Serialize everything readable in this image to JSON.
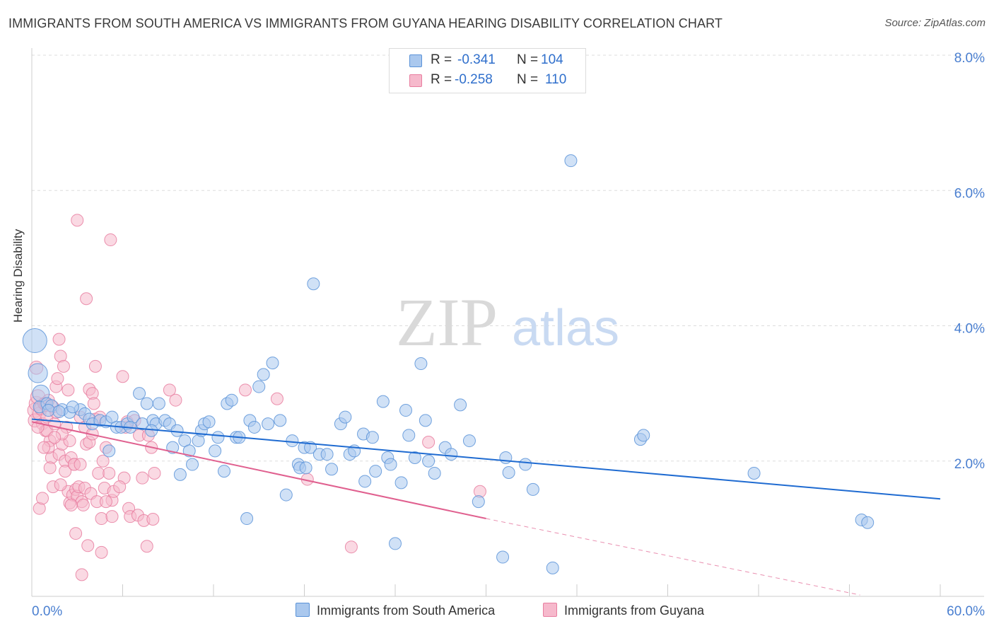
{
  "title": "IMMIGRANTS FROM SOUTH AMERICA VS IMMIGRANTS FROM GUYANA HEARING DISABILITY CORRELATION CHART",
  "source": "Source: ZipAtlas.com",
  "watermark": {
    "zip": "ZIP",
    "atlas": "atlas"
  },
  "colors": {
    "blue_fill": "#aac8ee",
    "blue_stroke": "#5b93d8",
    "blue_line": "#1f6bd1",
    "pink_fill": "#f6b9cc",
    "pink_stroke": "#e87ea0",
    "pink_line": "#e0608f",
    "tick_label": "#4a7fd0",
    "grid": "#dddddd"
  },
  "legend": {
    "rows": [
      {
        "r_label": "R =",
        "r_value": "-0.341",
        "n_label": "N =",
        "n_value": "104",
        "series": "blue"
      },
      {
        "r_label": "R =",
        "r_value": "-0.258",
        "n_label": "N =",
        "n_value": "110",
        "series": "pink"
      }
    ]
  },
  "bottom_legend": [
    {
      "label": "Immigrants from South America",
      "series": "blue"
    },
    {
      "label": "Immigrants from Guyana",
      "series": "pink"
    }
  ],
  "chart_data": {
    "type": "scatter",
    "title": "IMMIGRANTS FROM SOUTH AMERICA VS IMMIGRANTS FROM GUYANA HEARING DISABILITY CORRELATION CHART",
    "xlabel": "",
    "ylabel": "Hearing Disability",
    "xlim": [
      0,
      60
    ],
    "ylim": [
      0,
      8
    ],
    "x_tick_labels": [
      "0.0%",
      "60.0%"
    ],
    "y_ticks": [
      2,
      4,
      6,
      8
    ],
    "y_tick_labels": [
      "2.0%",
      "4.0%",
      "6.0%",
      "8.0%"
    ],
    "grid": "horizontal dashed",
    "legend_position": "top-center",
    "series": [
      {
        "name": "Immigrants from South America",
        "color": "blue",
        "R": -0.341,
        "N": 104,
        "trend": {
          "x": [
            0,
            60
          ],
          "y": [
            2.62,
            1.44
          ]
        },
        "points": [
          [
            0.2,
            3.78,
            20
          ],
          [
            0.4,
            3.3,
            16
          ],
          [
            0.6,
            3.0,
            14
          ],
          [
            0.5,
            2.8,
            10
          ],
          [
            1.0,
            2.85,
            10
          ],
          [
            1.3,
            2.82,
            10
          ],
          [
            1.1,
            2.75,
            10
          ],
          [
            2.0,
            2.76,
            10
          ],
          [
            2.5,
            2.72,
            10
          ],
          [
            3.2,
            2.76,
            10
          ],
          [
            2.7,
            2.8,
            10
          ],
          [
            1.8,
            2.73,
            10
          ],
          [
            3.5,
            2.7,
            10
          ],
          [
            3.8,
            2.62,
            10
          ],
          [
            4.0,
            2.55,
            10
          ],
          [
            4.5,
            2.6,
            10
          ],
          [
            4.9,
            2.58,
            10
          ],
          [
            5.3,
            2.65,
            10
          ],
          [
            5.6,
            2.5,
            10
          ],
          [
            5.1,
            2.15,
            10
          ],
          [
            5.9,
            2.5,
            10
          ],
          [
            6.3,
            2.55,
            10
          ],
          [
            6.7,
            2.65,
            10
          ],
          [
            6.5,
            2.5,
            10
          ],
          [
            7.1,
            3.0,
            10
          ],
          [
            7.3,
            2.55,
            10
          ],
          [
            7.6,
            2.85,
            10
          ],
          [
            8.0,
            2.6,
            10
          ],
          [
            8.2,
            2.55,
            10
          ],
          [
            7.9,
            2.45,
            10
          ],
          [
            8.4,
            2.85,
            10
          ],
          [
            8.8,
            2.6,
            10
          ],
          [
            9.1,
            2.55,
            10
          ],
          [
            9.3,
            2.2,
            10
          ],
          [
            9.6,
            2.45,
            10
          ],
          [
            9.8,
            1.8,
            10
          ],
          [
            10.1,
            2.3,
            10
          ],
          [
            10.4,
            2.15,
            10
          ],
          [
            10.6,
            1.95,
            10
          ],
          [
            11.0,
            2.3,
            10
          ],
          [
            11.2,
            2.45,
            10
          ],
          [
            11.4,
            2.55,
            10
          ],
          [
            11.7,
            2.58,
            10
          ],
          [
            12.1,
            2.15,
            10
          ],
          [
            12.3,
            2.35,
            10
          ],
          [
            12.7,
            1.85,
            10
          ],
          [
            12.9,
            2.85,
            10
          ],
          [
            13.2,
            2.9,
            10
          ],
          [
            13.5,
            2.35,
            10
          ],
          [
            13.7,
            2.35,
            10
          ],
          [
            14.2,
            1.15,
            10
          ],
          [
            14.4,
            2.6,
            10
          ],
          [
            14.7,
            2.5,
            10
          ],
          [
            15.0,
            3.1,
            10
          ],
          [
            15.3,
            3.28,
            10
          ],
          [
            15.6,
            2.55,
            10
          ],
          [
            15.9,
            3.45,
            10
          ],
          [
            16.4,
            2.6,
            10
          ],
          [
            16.8,
            1.5,
            10
          ],
          [
            17.2,
            2.3,
            10
          ],
          [
            17.6,
            1.95,
            10
          ],
          [
            18.0,
            2.2,
            10
          ],
          [
            17.7,
            1.9,
            10
          ],
          [
            18.1,
            1.9,
            10
          ],
          [
            18.4,
            2.2,
            10
          ],
          [
            18.6,
            4.62,
            10
          ],
          [
            19.0,
            2.1,
            10
          ],
          [
            19.5,
            2.1,
            10
          ],
          [
            19.8,
            1.88,
            10
          ],
          [
            20.4,
            2.55,
            10
          ],
          [
            20.7,
            2.65,
            10
          ],
          [
            21.0,
            2.1,
            10
          ],
          [
            21.3,
            2.15,
            10
          ],
          [
            21.9,
            2.4,
            10
          ],
          [
            22.0,
            1.7,
            10
          ],
          [
            22.5,
            2.35,
            10
          ],
          [
            22.7,
            1.85,
            10
          ],
          [
            23.2,
            2.88,
            10
          ],
          [
            23.5,
            2.05,
            10
          ],
          [
            23.7,
            1.95,
            10
          ],
          [
            24.0,
            0.78,
            10
          ],
          [
            24.4,
            1.68,
            10
          ],
          [
            24.7,
            2.75,
            10
          ],
          [
            24.9,
            2.38,
            10
          ],
          [
            25.3,
            2.05,
            10
          ],
          [
            25.7,
            3.44,
            10
          ],
          [
            26.0,
            2.6,
            10
          ],
          [
            26.2,
            2.0,
            10
          ],
          [
            26.6,
            1.82,
            10
          ],
          [
            27.3,
            2.2,
            10
          ],
          [
            27.7,
            2.1,
            10
          ],
          [
            28.3,
            2.83,
            10
          ],
          [
            28.9,
            2.3,
            10
          ],
          [
            29.5,
            1.4,
            10
          ],
          [
            31.1,
            0.58,
            10
          ],
          [
            31.3,
            2.05,
            10
          ],
          [
            31.5,
            1.83,
            10
          ],
          [
            32.6,
            1.95,
            10
          ],
          [
            33.1,
            1.58,
            10
          ],
          [
            34.4,
            0.42,
            10
          ],
          [
            35.6,
            6.44,
            10
          ],
          [
            40.2,
            2.32,
            10
          ],
          [
            40.4,
            2.38,
            10
          ],
          [
            47.7,
            1.82,
            10
          ],
          [
            54.8,
            1.13,
            10
          ],
          [
            55.2,
            1.09,
            10
          ]
        ]
      },
      {
        "name": "Immigrants from Guyana",
        "color": "pink",
        "R": -0.258,
        "N": 110,
        "trend": {
          "x": [
            0,
            30
          ],
          "y": [
            2.58,
            1.15
          ]
        },
        "trend_dashed": {
          "x": [
            30,
            54.7
          ],
          "y": [
            1.15,
            0.02
          ]
        },
        "points": [
          [
            0.2,
            2.75,
            12
          ],
          [
            0.3,
            2.85,
            12
          ],
          [
            0.4,
            2.95,
            12
          ],
          [
            0.2,
            2.6,
            11
          ],
          [
            0.5,
            2.7,
            11
          ],
          [
            0.6,
            2.78,
            11
          ],
          [
            0.3,
            3.38,
            11
          ],
          [
            0.7,
            2.55,
            10
          ],
          [
            0.8,
            2.85,
            10
          ],
          [
            0.9,
            2.45,
            10
          ],
          [
            1.0,
            2.65,
            10
          ],
          [
            1.1,
            2.9,
            10
          ],
          [
            1.2,
            2.3,
            10
          ],
          [
            1.0,
            2.45,
            10
          ],
          [
            1.3,
            2.05,
            10
          ],
          [
            1.2,
            1.9,
            10
          ],
          [
            1.4,
            2.8,
            10
          ],
          [
            1.5,
            2.55,
            10
          ],
          [
            1.1,
            2.2,
            10
          ],
          [
            1.6,
            3.1,
            10
          ],
          [
            1.4,
            1.62,
            10
          ],
          [
            1.7,
            3.22,
            10
          ],
          [
            1.8,
            2.1,
            10
          ],
          [
            1.9,
            3.55,
            10
          ],
          [
            1.8,
            3.8,
            10
          ],
          [
            2.0,
            2.25,
            10
          ],
          [
            2.1,
            3.4,
            10
          ],
          [
            2.2,
            2.0,
            10
          ],
          [
            2.2,
            1.85,
            10
          ],
          [
            2.3,
            2.5,
            10
          ],
          [
            2.4,
            3.05,
            10
          ],
          [
            2.5,
            2.3,
            10
          ],
          [
            2.4,
            1.55,
            10
          ],
          [
            2.5,
            1.38,
            10
          ],
          [
            2.6,
            2.05,
            10
          ],
          [
            2.7,
            1.5,
            10
          ],
          [
            2.8,
            1.95,
            10
          ],
          [
            2.9,
            1.58,
            10
          ],
          [
            2.8,
            1.95,
            10
          ],
          [
            2.9,
            0.93,
            10
          ],
          [
            3.0,
            1.48,
            10
          ],
          [
            3.0,
            5.56,
            10
          ],
          [
            3.1,
            1.62,
            10
          ],
          [
            3.2,
            2.65,
            10
          ],
          [
            3.3,
            1.4,
            10
          ],
          [
            3.4,
            1.35,
            10
          ],
          [
            3.5,
            2.5,
            10
          ],
          [
            3.6,
            2.25,
            10
          ],
          [
            3.5,
            1.6,
            10
          ],
          [
            3.6,
            4.4,
            10
          ],
          [
            3.7,
            0.75,
            10
          ],
          [
            3.8,
            2.28,
            10
          ],
          [
            3.8,
            3.06,
            10
          ],
          [
            3.9,
            1.52,
            10
          ],
          [
            4.0,
            3.0,
            10
          ],
          [
            4.0,
            2.4,
            10
          ],
          [
            4.1,
            2.85,
            10
          ],
          [
            4.2,
            3.4,
            10
          ],
          [
            4.2,
            2.62,
            10
          ],
          [
            4.3,
            1.4,
            10
          ],
          [
            4.4,
            1.82,
            10
          ],
          [
            4.5,
            2.65,
            10
          ],
          [
            4.6,
            1.15,
            10
          ],
          [
            4.6,
            0.65,
            10
          ],
          [
            4.7,
            2.0,
            10
          ],
          [
            4.8,
            1.6,
            10
          ],
          [
            4.9,
            2.2,
            10
          ],
          [
            5.1,
            1.82,
            10
          ],
          [
            5.2,
            5.27,
            10
          ],
          [
            5.3,
            1.42,
            10
          ],
          [
            5.4,
            1.55,
            10
          ],
          [
            5.3,
            1.18,
            10
          ],
          [
            6.0,
            3.25,
            10
          ],
          [
            6.1,
            1.75,
            10
          ],
          [
            6.2,
            2.5,
            10
          ],
          [
            6.3,
            2.58,
            10
          ],
          [
            6.4,
            1.3,
            10
          ],
          [
            6.5,
            1.18,
            10
          ],
          [
            6.8,
            2.6,
            10
          ],
          [
            7.0,
            1.2,
            10
          ],
          [
            7.1,
            2.38,
            10
          ],
          [
            7.3,
            1.75,
            10
          ],
          [
            7.4,
            1.12,
            10
          ],
          [
            7.6,
            0.74,
            10
          ],
          [
            7.7,
            2.38,
            10
          ],
          [
            7.9,
            2.2,
            10
          ],
          [
            8.0,
            1.14,
            10
          ],
          [
            8.1,
            1.82,
            10
          ],
          [
            9.1,
            3.05,
            10
          ],
          [
            9.5,
            2.9,
            10
          ],
          [
            0.5,
            1.3,
            10
          ],
          [
            0.7,
            1.45,
            10
          ],
          [
            3.3,
            0.32,
            10
          ],
          [
            14.1,
            3.05,
            10
          ],
          [
            16.2,
            2.92,
            10
          ],
          [
            18.2,
            1.73,
            10
          ],
          [
            21.1,
            0.73,
            10
          ],
          [
            26.2,
            2.28,
            10
          ],
          [
            29.6,
            1.55,
            10
          ],
          [
            0.9,
            2.85,
            10
          ],
          [
            1.6,
            2.72,
            10
          ],
          [
            2.0,
            2.4,
            10
          ],
          [
            1.5,
            2.35,
            10
          ],
          [
            0.4,
            2.5,
            10
          ],
          [
            2.6,
            1.35,
            10
          ],
          [
            3.2,
            1.95,
            10
          ],
          [
            4.9,
            1.4,
            10
          ],
          [
            0.8,
            2.2,
            10
          ],
          [
            1.9,
            1.65,
            10
          ],
          [
            5.8,
            1.62,
            10
          ]
        ]
      }
    ]
  }
}
